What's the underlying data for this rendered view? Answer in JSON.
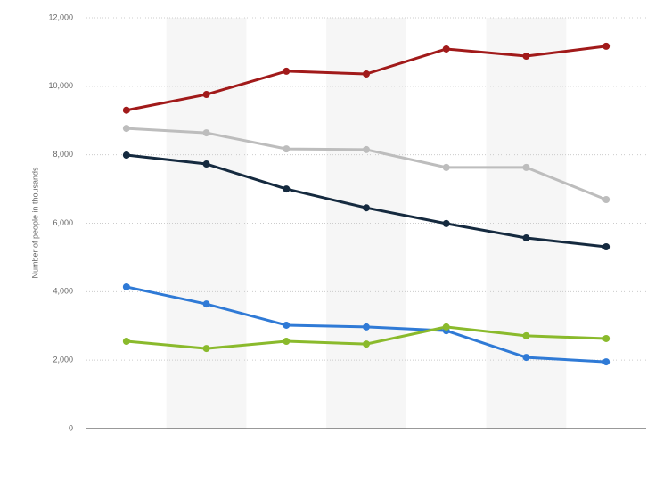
{
  "chart_data": {
    "type": "line",
    "y_label": "Number of people in thousands",
    "categories": [
      null,
      null,
      null,
      null,
      null,
      null,
      null
    ],
    "series": [
      {
        "color": "#a11a1a",
        "values": [
          9300,
          9760,
          10440,
          10360,
          11090,
          10880,
          11170
        ]
      },
      {
        "color": "#bdbdbd",
        "values": [
          8770,
          8640,
          8170,
          8150,
          7630,
          7630,
          6690
        ]
      },
      {
        "color": "#152a3f",
        "values": [
          7990,
          7730,
          7000,
          6450,
          5990,
          5570,
          5310
        ]
      },
      {
        "color": "#2f7ad6",
        "values": [
          4140,
          3640,
          3020,
          2970,
          2860,
          2080,
          1950
        ]
      },
      {
        "color": "#8aba2c",
        "values": [
          2550,
          2340,
          2550,
          2470,
          2970,
          2710,
          2630
        ]
      }
    ],
    "ylim": [
      0,
      12000
    ],
    "yticks": [
      0,
      {
        "value": 2000,
        "label": "2,000"
      },
      {
        "value": 4000,
        "label": "4,000"
      },
      {
        "value": 6000,
        "label": "6,000"
      },
      {
        "value": 8000,
        "label": "8,000"
      },
      {
        "value": 10000,
        "label": "10,000"
      },
      {
        "value": 12000,
        "label": "12,000"
      }
    ],
    "grid": true
  }
}
